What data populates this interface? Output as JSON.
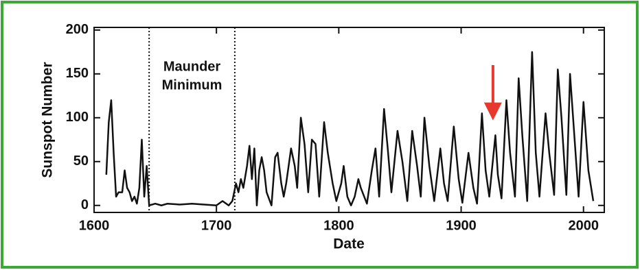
{
  "chart_data": {
    "type": "line",
    "x_label": "Date",
    "y_label": "Sunspot Number",
    "annotation": [
      "Maunder",
      "Minimum"
    ],
    "vlines": [
      1645,
      1715
    ],
    "arrow": {
      "x": 1926,
      "from": 160,
      "to": 97,
      "color": "#e8372c"
    },
    "xlim": [
      1600,
      2017
    ],
    "ylim": [
      -8,
      203
    ],
    "xticks": [
      1600,
      1700,
      1800,
      1900,
      2000
    ],
    "yticks": [
      0,
      50,
      100,
      150,
      200
    ],
    "x": [
      1610,
      1612,
      1614,
      1616,
      1618,
      1620,
      1623,
      1625,
      1627,
      1629,
      1631,
      1633,
      1635,
      1637,
      1639,
      1641,
      1643,
      1645,
      1650,
      1655,
      1660,
      1670,
      1680,
      1690,
      1700,
      1705,
      1710,
      1713,
      1716,
      1718,
      1720,
      1722,
      1725,
      1727,
      1729,
      1731,
      1733,
      1735,
      1737,
      1739,
      1741,
      1745,
      1748,
      1750,
      1753,
      1755,
      1757,
      1761,
      1764,
      1766,
      1769,
      1772,
      1775,
      1778,
      1781,
      1784,
      1788,
      1791,
      1795,
      1798,
      1802,
      1804,
      1807,
      1810,
      1813,
      1816,
      1818,
      1823,
      1827,
      1830,
      1833,
      1837,
      1840,
      1843,
      1848,
      1852,
      1856,
      1860,
      1864,
      1867,
      1870,
      1874,
      1878,
      1883,
      1886,
      1889,
      1894,
      1898,
      1901,
      1906,
      1910,
      1913,
      1917,
      1920,
      1923,
      1928,
      1930,
      1933,
      1937,
      1940,
      1944,
      1947,
      1950,
      1954,
      1958,
      1961,
      1964,
      1969,
      1972,
      1976,
      1979,
      1982,
      1986,
      1989,
      1992,
      1996,
      2000,
      2004,
      2008
    ],
    "series": [
      {
        "name": "Sunspot Number",
        "color": "#111111",
        "values": [
          35,
          95,
          120,
          60,
          10,
          15,
          15,
          40,
          20,
          15,
          5,
          10,
          2,
          20,
          75,
          10,
          45,
          0,
          2,
          0,
          2,
          1,
          2,
          1,
          0,
          5,
          0,
          5,
          25,
          15,
          30,
          20,
          45,
          68,
          30,
          65,
          0,
          40,
          55,
          40,
          15,
          0,
          55,
          60,
          25,
          10,
          25,
          65,
          45,
          20,
          100,
          70,
          15,
          75,
          70,
          10,
          95,
          60,
          25,
          5,
          25,
          45,
          10,
          0,
          10,
          30,
          20,
          2,
          40,
          65,
          10,
          110,
          65,
          15,
          85,
          50,
          5,
          85,
          45,
          10,
          100,
          45,
          5,
          65,
          25,
          5,
          90,
          30,
          3,
          60,
          20,
          2,
          105,
          40,
          10,
          80,
          35,
          8,
          120,
          60,
          10,
          145,
          80,
          5,
          175,
          60,
          10,
          105,
          60,
          12,
          155,
          100,
          12,
          150,
          90,
          10,
          118,
          40,
          5
        ]
      }
    ],
    "frame_color": "#3aaa35"
  }
}
